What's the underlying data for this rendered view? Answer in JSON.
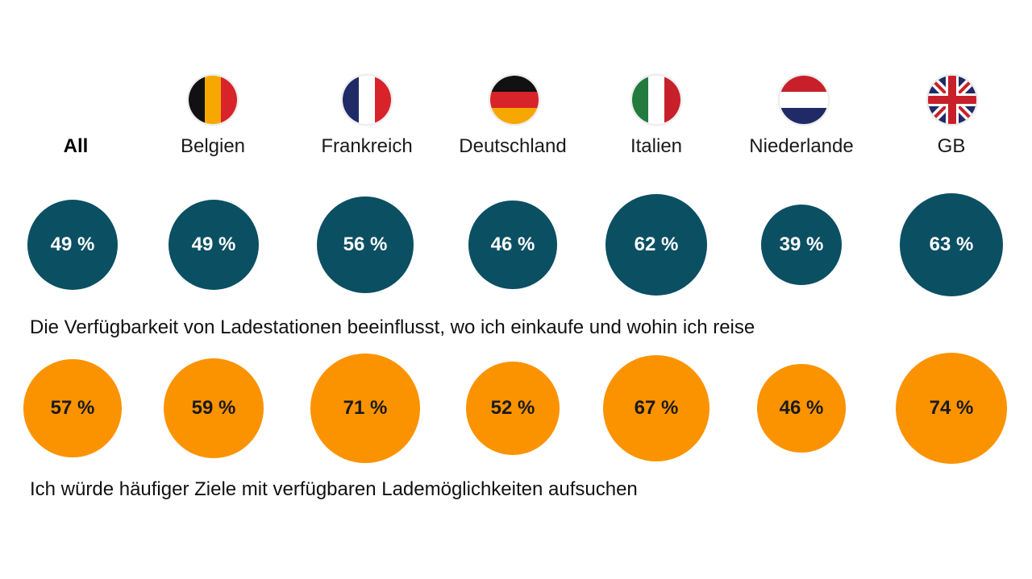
{
  "colors": {
    "row1": "#0b4f63",
    "row2": "#fb9300",
    "row1_text": "#ffffff",
    "row2_text": "#1a1a1a"
  },
  "columns": [
    {
      "label": "All",
      "flag": null
    },
    {
      "label": "Belgien",
      "flag": "belgium-flag-icon"
    },
    {
      "label": "Frankreich",
      "flag": "france-flag-icon"
    },
    {
      "label": "Deutschland",
      "flag": "germany-flag-icon"
    },
    {
      "label": "Italien",
      "flag": "italy-flag-icon"
    },
    {
      "label": "Niederlande",
      "flag": "netherlands-flag-icon"
    },
    {
      "label": "GB",
      "flag": "uk-flag-icon"
    }
  ],
  "chart_data": {
    "type": "bubble",
    "categories": [
      "All",
      "Belgien",
      "Frankreich",
      "Deutschland",
      "Italien",
      "Niederlande",
      "GB"
    ],
    "series": [
      {
        "name": "Die Verfügbarkeit von Ladestationen beeinflusst, wo ich einkaufe und wohin ich reise",
        "values": [
          49,
          49,
          56,
          46,
          62,
          39,
          63
        ],
        "labels": [
          "49 %",
          "49 %",
          "56 %",
          "46 %",
          "62 %",
          "39 %",
          "63 %"
        ]
      },
      {
        "name": "Ich würde häufiger Ziele mit verfügbaren Lademöglichkeiten aufsuchen",
        "values": [
          57,
          59,
          71,
          52,
          67,
          46,
          74
        ],
        "labels": [
          "57 %",
          "59 %",
          "71 %",
          "52 %",
          "67 %",
          "46 %",
          "74 %"
        ]
      }
    ]
  }
}
